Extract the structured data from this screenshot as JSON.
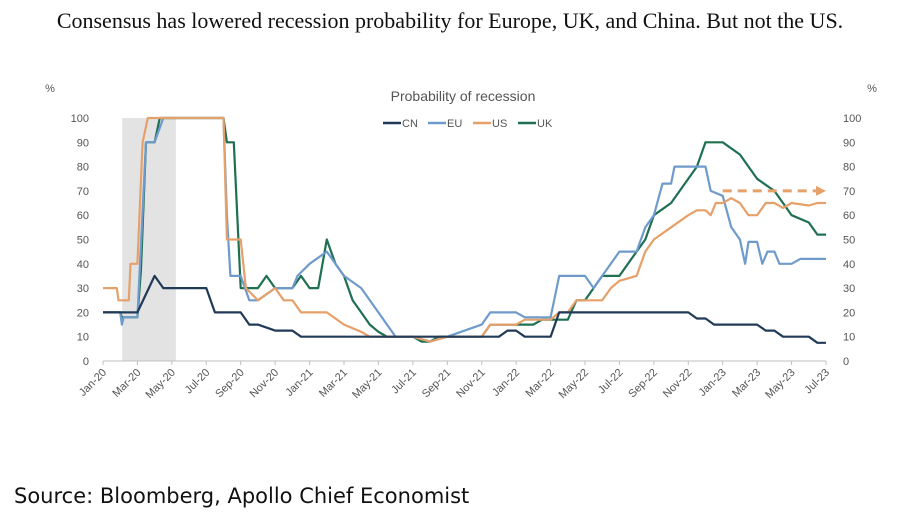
{
  "headline": "Consensus has lowered recession probability for Europe, UK, and China. But not the US.",
  "source": "Source: Bloomberg, Apollo Chief Economist",
  "colors": {
    "CN": "#203a57",
    "EU": "#6f9bcc",
    "US": "#e6a06a",
    "UK": "#1e7051",
    "recession_band": "#e3e3e3",
    "axis": "#bfbfbf"
  },
  "chart_data": {
    "type": "line",
    "title": "Probability of recession",
    "ylabel_left": "%",
    "ylabel_right": "%",
    "ylim": [
      0,
      100
    ],
    "yticks": [
      0,
      10,
      20,
      30,
      40,
      50,
      60,
      70,
      80,
      90,
      100
    ],
    "xlim": [
      "2020-01",
      "2023-07"
    ],
    "xticks": [
      "Jan-20",
      "Mar-20",
      "May-20",
      "Jul-20",
      "Sep-20",
      "Nov-20",
      "Jan-21",
      "Mar-21",
      "May-21",
      "Jul-21",
      "Sep-21",
      "Nov-21",
      "Jan-22",
      "Mar-22",
      "May-22",
      "Jul-22",
      "Sep-22",
      "Nov-22",
      "Jan-23",
      "Mar-23",
      "May-23",
      "Jul-23"
    ],
    "legend": [
      "CN",
      "EU",
      "US",
      "UK"
    ],
    "legend_position": "top",
    "grid": false,
    "shaded_period": [
      "2020-02",
      "2020-05"
    ],
    "projection": {
      "series": "US",
      "from": "2023-01",
      "to": "2023-07",
      "value": 70
    },
    "series": [
      {
        "name": "CN",
        "points": [
          [
            "2020-01",
            20
          ],
          [
            "2020-03",
            20
          ],
          [
            "2020-04",
            35
          ],
          [
            "2020-04.5",
            30
          ],
          [
            "2020-07",
            30
          ],
          [
            "2020-07.5",
            20
          ],
          [
            "2020-09",
            20
          ],
          [
            "2020-09.5",
            15
          ],
          [
            "2020-10",
            15
          ],
          [
            "2020-11",
            12.5
          ],
          [
            "2020-12",
            12.5
          ],
          [
            "2020-12.5",
            10
          ],
          [
            "2021-08",
            10
          ],
          [
            "2021-12",
            10
          ],
          [
            "2021-12.5",
            12.5
          ],
          [
            "2022-01",
            12.5
          ],
          [
            "2022-01.5",
            10
          ],
          [
            "2022-03",
            10
          ],
          [
            "2022-03.5",
            20
          ],
          [
            "2022-11",
            20
          ],
          [
            "2022-11.5",
            17.5
          ],
          [
            "2022-12",
            17.5
          ],
          [
            "2022-12.5",
            15
          ],
          [
            "2023-03",
            15
          ],
          [
            "2023-03.5",
            12.5
          ],
          [
            "2023-04",
            12.5
          ],
          [
            "2023-04.5",
            10
          ],
          [
            "2023-06",
            10
          ],
          [
            "2023-06.5",
            7.5
          ],
          [
            "2023-07",
            7.5
          ]
        ]
      },
      {
        "name": "EU",
        "points": [
          [
            "2020-01",
            20
          ],
          [
            "2020-02",
            20
          ],
          [
            "2020-02.1",
            15
          ],
          [
            "2020-02.2",
            18
          ],
          [
            "2020-03",
            18
          ],
          [
            "2020-03.5",
            90
          ],
          [
            "2020-04",
            90
          ],
          [
            "2020-04.5",
            100
          ],
          [
            "2020-08",
            100
          ],
          [
            "2020-08.2",
            60
          ],
          [
            "2020-08.4",
            35
          ],
          [
            "2020-09",
            35
          ],
          [
            "2020-09.5",
            25
          ],
          [
            "2020-10",
            25
          ],
          [
            "2020-11",
            30
          ],
          [
            "2020-12",
            30
          ],
          [
            "2020-12.3",
            35
          ],
          [
            "2021-01",
            40
          ],
          [
            "2021-02",
            45
          ],
          [
            "2021-02.5",
            40
          ],
          [
            "2021-03",
            35
          ],
          [
            "2021-04",
            30
          ],
          [
            "2021-04.5",
            25
          ],
          [
            "2021-05",
            20
          ],
          [
            "2021-05.5",
            15
          ],
          [
            "2021-06",
            10
          ],
          [
            "2021-07",
            10
          ],
          [
            "2021-08",
            8
          ],
          [
            "2021-09",
            10
          ],
          [
            "2021-11",
            15
          ],
          [
            "2021-11.5",
            20
          ],
          [
            "2022-01",
            20
          ],
          [
            "2022-01.5",
            18
          ],
          [
            "2022-03",
            18
          ],
          [
            "2022-03.5",
            35
          ],
          [
            "2022-05",
            35
          ],
          [
            "2022-05.5",
            30
          ],
          [
            "2022-06",
            35
          ],
          [
            "2022-06.5",
            40
          ],
          [
            "2022-07",
            45
          ],
          [
            "2022-08",
            45
          ],
          [
            "2022-08.5",
            55
          ],
          [
            "2022-09",
            60
          ],
          [
            "2022-09.5",
            73
          ],
          [
            "2022-10",
            73
          ],
          [
            "2022-10.2",
            80
          ],
          [
            "2022-12",
            80
          ],
          [
            "2022-12.3",
            70
          ],
          [
            "2023-01",
            68
          ],
          [
            "2023-01.5",
            55
          ],
          [
            "2023-02",
            50
          ],
          [
            "2023-02.3",
            40
          ],
          [
            "2023-02.5",
            49
          ],
          [
            "2023-03",
            49
          ],
          [
            "2023-03.3",
            40
          ],
          [
            "2023-03.6",
            45
          ],
          [
            "2023-04",
            45
          ],
          [
            "2023-04.3",
            40
          ],
          [
            "2023-05",
            40
          ],
          [
            "2023-05.5",
            42
          ],
          [
            "2023-07",
            42
          ]
        ]
      },
      {
        "name": "US",
        "points": [
          [
            "2020-01",
            30
          ],
          [
            "2020-01.8",
            30
          ],
          [
            "2020-01.9",
            25
          ],
          [
            "2020-02.5",
            25
          ],
          [
            "2020-02.6",
            40
          ],
          [
            "2020-03",
            40
          ],
          [
            "2020-03.3",
            90
          ],
          [
            "2020-03.6",
            100
          ],
          [
            "2020-08",
            100
          ],
          [
            "2020-08.2",
            50
          ],
          [
            "2020-09",
            50
          ],
          [
            "2020-09.3",
            30
          ],
          [
            "2020-10",
            25
          ],
          [
            "2020-11",
            30
          ],
          [
            "2020-11.5",
            25
          ],
          [
            "2020-12",
            25
          ],
          [
            "2020-12.5",
            20
          ],
          [
            "2021-02",
            20
          ],
          [
            "2021-03",
            15
          ],
          [
            "2021-04",
            12
          ],
          [
            "2021-04.5",
            10
          ],
          [
            "2021-06",
            10
          ],
          [
            "2021-07",
            10
          ],
          [
            "2021-08",
            8
          ],
          [
            "2021-09",
            10
          ],
          [
            "2021-11",
            10
          ],
          [
            "2021-11.5",
            15
          ],
          [
            "2022-01",
            15
          ],
          [
            "2022-01.5",
            17
          ],
          [
            "2022-03",
            17
          ],
          [
            "2022-03.5",
            20
          ],
          [
            "2022-04",
            20
          ],
          [
            "2022-04.5",
            25
          ],
          [
            "2022-06",
            25
          ],
          [
            "2022-06.5",
            30
          ],
          [
            "2022-07",
            33
          ],
          [
            "2022-08",
            35
          ],
          [
            "2022-08.5",
            45
          ],
          [
            "2022-09",
            50
          ],
          [
            "2022-10",
            55
          ],
          [
            "2022-11",
            60
          ],
          [
            "2022-11.5",
            62
          ],
          [
            "2022-12",
            62
          ],
          [
            "2022-12.3",
            60
          ],
          [
            "2022-12.6",
            65
          ],
          [
            "2023-01",
            65
          ],
          [
            "2023-01.5",
            67
          ],
          [
            "2023-02",
            65
          ],
          [
            "2023-02.5",
            60
          ],
          [
            "2023-03",
            60
          ],
          [
            "2023-03.5",
            65
          ],
          [
            "2023-04",
            65
          ],
          [
            "2023-04.5",
            63
          ],
          [
            "2023-05",
            65
          ],
          [
            "2023-06",
            64
          ],
          [
            "2023-06.5",
            65
          ],
          [
            "2023-07",
            65
          ]
        ]
      },
      {
        "name": "UK",
        "points": [
          [
            "2020-01",
            20
          ],
          [
            "2020-02",
            20
          ],
          [
            "2020-02.1",
            18
          ],
          [
            "2020-03",
            18
          ],
          [
            "2020-03.2",
            37
          ],
          [
            "2020-03.5",
            90
          ],
          [
            "2020-04",
            90
          ],
          [
            "2020-04.3",
            100
          ],
          [
            "2020-08",
            100
          ],
          [
            "2020-08.2",
            90
          ],
          [
            "2020-08.6",
            90
          ],
          [
            "2020-09",
            30
          ],
          [
            "2020-10",
            30
          ],
          [
            "2020-10.5",
            35
          ],
          [
            "2020-11",
            30
          ],
          [
            "2020-12",
            30
          ],
          [
            "2020-12.5",
            35
          ],
          [
            "2021-01",
            30
          ],
          [
            "2021-01.5",
            30
          ],
          [
            "2021-02",
            50
          ],
          [
            "2021-02.5",
            40
          ],
          [
            "2021-03",
            35
          ],
          [
            "2021-03.5",
            25
          ],
          [
            "2021-04",
            20
          ],
          [
            "2021-04.5",
            15
          ],
          [
            "2021-05",
            12
          ],
          [
            "2021-05.5",
            10
          ],
          [
            "2021-07",
            10
          ],
          [
            "2021-07.5",
            8
          ],
          [
            "2021-08",
            8
          ],
          [
            "2021-08.5",
            10
          ],
          [
            "2021-11",
            10
          ],
          [
            "2021-11.5",
            15
          ],
          [
            "2022-02",
            15
          ],
          [
            "2022-02.5",
            17
          ],
          [
            "2022-04",
            17
          ],
          [
            "2022-04.5",
            25
          ],
          [
            "2022-05",
            25
          ],
          [
            "2022-05.5",
            30
          ],
          [
            "2022-06",
            35
          ],
          [
            "2022-07",
            35
          ],
          [
            "2022-08",
            45
          ],
          [
            "2022-08.5",
            50
          ],
          [
            "2022-09",
            60
          ],
          [
            "2022-10",
            65
          ],
          [
            "2022-11",
            75
          ],
          [
            "2022-11.5",
            80
          ],
          [
            "2022-12",
            90
          ],
          [
            "2023-01",
            90
          ],
          [
            "2023-02",
            85
          ],
          [
            "2023-03",
            75
          ],
          [
            "2023-04",
            70
          ],
          [
            "2023-04.5",
            65
          ],
          [
            "2023-05",
            60
          ],
          [
            "2023-06",
            57
          ],
          [
            "2023-06.5",
            52
          ],
          [
            "2023-07",
            52
          ]
        ]
      }
    ]
  }
}
